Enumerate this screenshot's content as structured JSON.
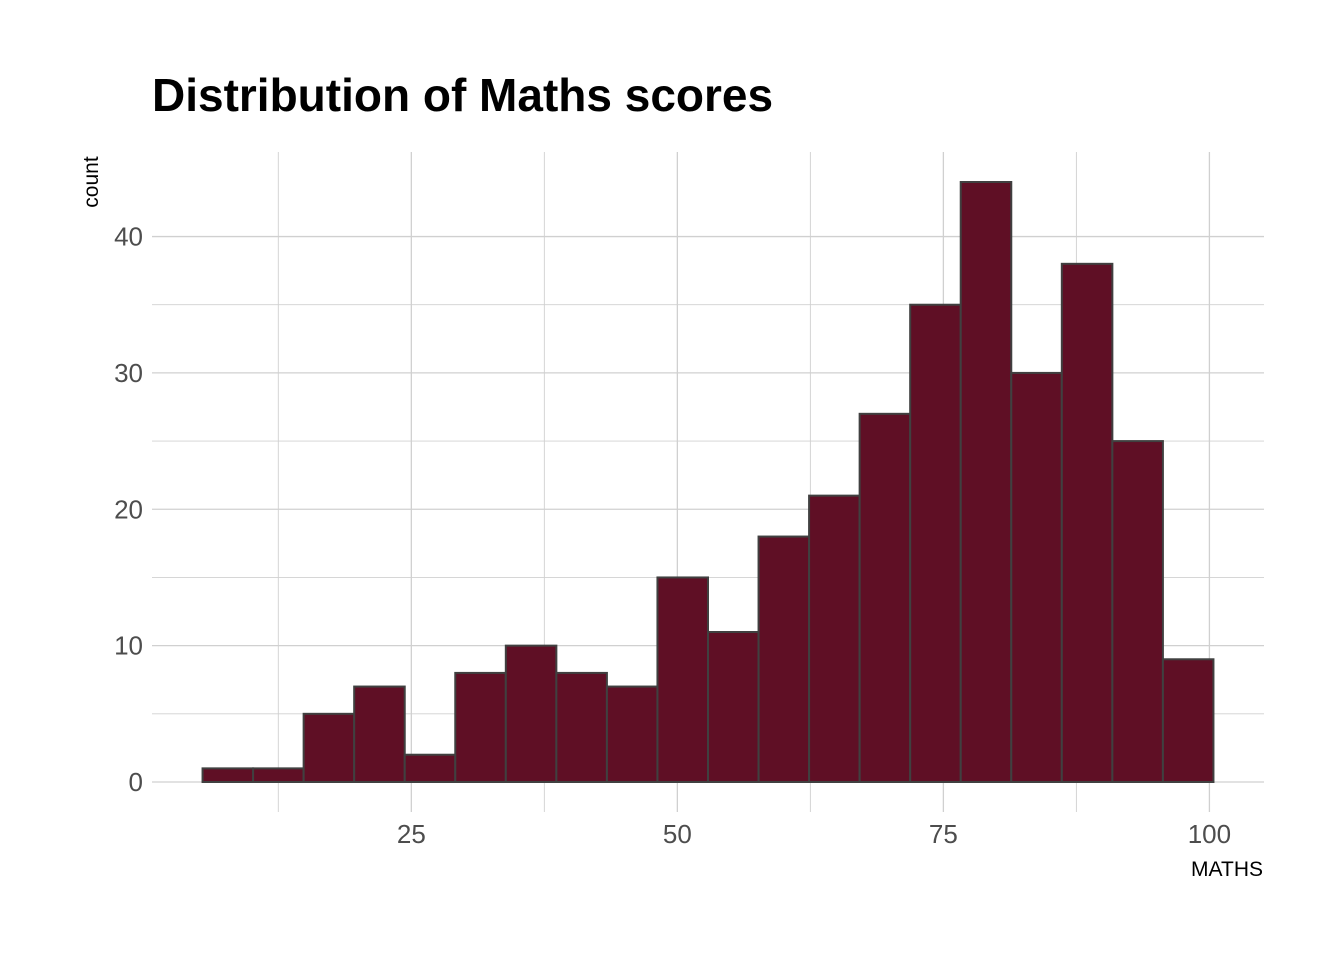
{
  "chart_data": {
    "type": "bar",
    "title": "Distribution of Maths scores",
    "xlabel": "MATHS",
    "ylabel": "count",
    "bin_width": 4.75,
    "bins": [
      {
        "x0": 5.38,
        "x1": 10.13,
        "count": 1
      },
      {
        "x0": 10.13,
        "x1": 14.88,
        "count": 1
      },
      {
        "x0": 14.88,
        "x1": 19.63,
        "count": 5
      },
      {
        "x0": 19.63,
        "x1": 24.38,
        "count": 7
      },
      {
        "x0": 24.38,
        "x1": 29.13,
        "count": 2
      },
      {
        "x0": 29.13,
        "x1": 33.88,
        "count": 8
      },
      {
        "x0": 33.88,
        "x1": 38.63,
        "count": 10
      },
      {
        "x0": 38.63,
        "x1": 43.38,
        "count": 8
      },
      {
        "x0": 43.38,
        "x1": 48.13,
        "count": 7
      },
      {
        "x0": 48.13,
        "x1": 52.88,
        "count": 15
      },
      {
        "x0": 52.88,
        "x1": 57.63,
        "count": 11
      },
      {
        "x0": 57.63,
        "x1": 62.38,
        "count": 18
      },
      {
        "x0": 62.38,
        "x1": 67.13,
        "count": 21
      },
      {
        "x0": 67.13,
        "x1": 71.88,
        "count": 27
      },
      {
        "x0": 71.88,
        "x1": 76.63,
        "count": 35
      },
      {
        "x0": 76.63,
        "x1": 81.38,
        "count": 44
      },
      {
        "x0": 81.38,
        "x1": 86.13,
        "count": 30
      },
      {
        "x0": 86.13,
        "x1": 90.88,
        "count": 38
      },
      {
        "x0": 90.88,
        "x1": 95.63,
        "count": 25
      },
      {
        "x0": 95.63,
        "x1": 100.38,
        "count": 9
      }
    ],
    "x_ticks": [
      25,
      50,
      75,
      100
    ],
    "y_ticks": [
      0,
      10,
      20,
      30,
      40
    ],
    "xlim": [
      0.63,
      105.13
    ],
    "ylim": [
      -2.2,
      46.2
    ],
    "grid": true,
    "colors": {
      "fill": "#5f0f25",
      "outline": "#404040",
      "grid": "#d0d0d0"
    }
  }
}
